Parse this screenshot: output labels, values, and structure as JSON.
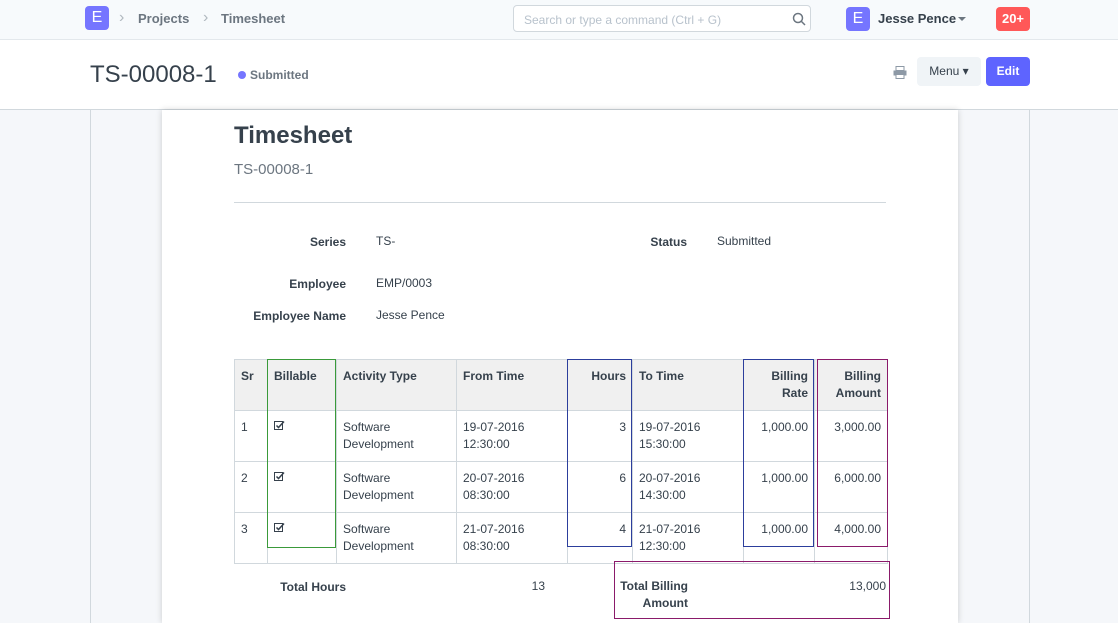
{
  "navbar": {
    "logo": "E",
    "breadcrumbs": [
      "Projects",
      "Timesheet"
    ],
    "search_placeholder": "Search or type a command (Ctrl + G)",
    "user_avatar": "E",
    "user_name": "Jesse Pence",
    "notifications": "20+"
  },
  "page_head": {
    "title": "TS-00008-1",
    "status": "Submitted",
    "menu": "Menu",
    "edit": "Edit"
  },
  "doc": {
    "heading": "Timesheet",
    "subheading": "TS-00008-1",
    "fields": [
      {
        "label": "Series",
        "value": "TS-"
      },
      {
        "label": "Status",
        "value": "Submitted"
      },
      {
        "label": "Employee",
        "value": "EMP/0003"
      },
      {
        "label": "Employee Name",
        "value": "Jesse Pence"
      }
    ],
    "table": {
      "columns": [
        "Sr",
        "Billable",
        "Activity Type",
        "From Time",
        "Hours",
        "To Time",
        "Billing Rate",
        "Billing Amount"
      ],
      "rows": [
        [
          1,
          "",
          "Software Development",
          "19-07-2016 12:30:00",
          3,
          "19-07-2016 15:30:00",
          "1,000.00",
          "3,000.00"
        ],
        [
          2,
          "",
          "Software Development",
          "20-07-2016 08:30:00",
          6,
          "20-07-2016 14:30:00",
          "1,000.00",
          "6,000.00"
        ],
        [
          3,
          "",
          "Software Development",
          "21-07-2016 08:30:00",
          4,
          "21-07-2016 12:30:00",
          "1,000.00",
          "4,000.00"
        ]
      ]
    },
    "totals": [
      {
        "label": "Total Hours",
        "value": 13
      },
      {
        "label": "Total Billing Amount",
        "value": "13,000"
      }
    ]
  }
}
